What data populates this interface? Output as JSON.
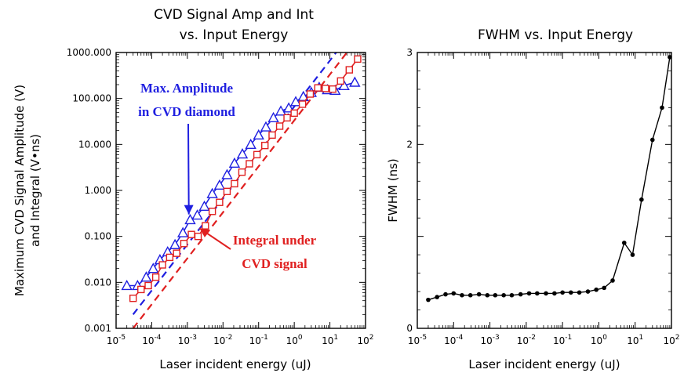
{
  "chart_data": [
    {
      "type": "line",
      "title": "CVD Signal Amp and Int",
      "subtitle": "vs. Input Energy",
      "xlabel": "Laser incident energy (uJ)",
      "ylabel": "Maximum CVD Signal Amplitude (V)",
      "ylabel2": "and Integral (V•ns)",
      "xscale": "log",
      "yscale": "log",
      "xlim": [
        1e-05,
        100
      ],
      "ylim": [
        0.001,
        1000
      ],
      "xticks": [
        1e-05,
        0.0001,
        0.001,
        0.01,
        0.1,
        1,
        10,
        100
      ],
      "xtick_labels": [
        {
          "base": "10",
          "exp": "-5"
        },
        {
          "base": "10",
          "exp": "-4"
        },
        {
          "base": "10",
          "exp": "-3"
        },
        {
          "base": "10",
          "exp": "-2"
        },
        {
          "base": "10",
          "exp": "-1"
        },
        {
          "base": "10",
          "exp": "0"
        },
        {
          "base": "10",
          "exp": "1"
        },
        {
          "base": "10",
          "exp": "2"
        }
      ],
      "yticks": [
        0.001,
        0.01,
        0.1,
        1,
        10,
        100,
        1000
      ],
      "ytick_labels": [
        "0.001",
        "0.010",
        "0.100",
        "1.000",
        "10.000",
        "100.000",
        "1000.000"
      ],
      "series": [
        {
          "color": "#1f1fe0",
          "marker": "triangle",
          "x": [
            2e-05,
            4e-05,
            7e-05,
            0.00011,
            0.00017,
            0.00028,
            0.00045,
            0.00075,
            0.0012,
            0.0019,
            0.003,
            0.005,
            0.008,
            0.013,
            0.021,
            0.035,
            0.06,
            0.1,
            0.16,
            0.26,
            0.42,
            0.7,
            1.1,
            1.8,
            3,
            5,
            8.5,
            14,
            25,
            50
          ],
          "y": [
            0.0085,
            0.0085,
            0.013,
            0.02,
            0.031,
            0.046,
            0.066,
            0.12,
            0.23,
            0.29,
            0.45,
            0.85,
            1.3,
            2.2,
            3.9,
            6.2,
            10,
            16,
            24,
            38,
            53,
            62,
            85,
            110,
            135,
            175,
            155,
            150,
            190,
            225
          ]
        },
        {
          "color": "#e02020",
          "marker": "square",
          "x": [
            3e-05,
            5e-05,
            8e-05,
            0.00013,
            0.0002,
            0.00032,
            0.0005,
            0.0008,
            0.0013,
            0.002,
            0.0032,
            0.005,
            0.008,
            0.013,
            0.021,
            0.034,
            0.055,
            0.09,
            0.15,
            0.24,
            0.39,
            0.63,
            1,
            1.7,
            2.8,
            4.6,
            7.5,
            12,
            20,
            35,
            60
          ],
          "y": [
            0.0045,
            0.007,
            0.0085,
            0.013,
            0.024,
            0.035,
            0.043,
            0.07,
            0.11,
            0.1,
            0.17,
            0.35,
            0.55,
            0.95,
            1.4,
            2.5,
            3.8,
            6,
            9.5,
            16,
            25,
            38,
            48,
            75,
            125,
            170,
            165,
            160,
            240,
            420,
            720
          ]
        }
      ],
      "fit_lines": [
        {
          "color": "#1f1fe0",
          "dash": true,
          "x": [
            3e-05,
            15
          ],
          "y": [
            0.002,
            1000
          ]
        },
        {
          "color": "#e02020",
          "dash": true,
          "x": [
            3e-05,
            30
          ],
          "y": [
            0.001,
            1000
          ]
        }
      ],
      "annotations": [
        {
          "text": "Max. Amplitude",
          "color": "#1f1fe0",
          "arrow_to_x": 0.0011,
          "arrow_to_y": 0.3
        },
        {
          "text": "in CVD diamond",
          "color": "#1f1fe0"
        },
        {
          "text": "Integral under",
          "color": "#e02020",
          "arrow_to_x": 0.0022,
          "arrow_to_y": 0.15
        },
        {
          "text": "CVD signal",
          "color": "#e02020"
        }
      ]
    },
    {
      "type": "line",
      "title": "FWHM vs. Input Energy",
      "xlabel": "Laser incident energy (uJ)",
      "ylabel": "FWHM  (ns)",
      "xscale": "log",
      "yscale": "linear",
      "xlim": [
        1e-05,
        100
      ],
      "ylim": [
        0,
        3
      ],
      "xticks": [
        1e-05,
        0.0001,
        0.001,
        0.01,
        0.1,
        1,
        10,
        100
      ],
      "xtick_labels": [
        {
          "base": "10",
          "exp": "-5"
        },
        {
          "base": "10",
          "exp": "-4"
        },
        {
          "base": "10",
          "exp": "-3"
        },
        {
          "base": "10",
          "exp": "-2"
        },
        {
          "base": "10",
          "exp": "-1"
        },
        {
          "base": "10",
          "exp": "0"
        },
        {
          "base": "10",
          "exp": "1"
        },
        {
          "base": "10",
          "exp": "2"
        }
      ],
      "yticks": [
        0,
        1,
        2,
        3
      ],
      "ytick_labels": [
        "0",
        "",
        "2",
        "3"
      ],
      "series": [
        {
          "color": "#000000",
          "marker": "dot",
          "x": [
            2e-05,
            3.5e-05,
            6e-05,
            0.0001,
            0.00017,
            0.00029,
            0.0005,
            0.00085,
            0.0014,
            0.0024,
            0.004,
            0.007,
            0.012,
            0.02,
            0.035,
            0.06,
            0.1,
            0.17,
            0.29,
            0.5,
            0.85,
            1.4,
            2.4,
            5,
            8.5,
            15,
            30,
            55,
            90
          ],
          "y": [
            0.31,
            0.34,
            0.37,
            0.38,
            0.36,
            0.36,
            0.37,
            0.36,
            0.36,
            0.36,
            0.36,
            0.37,
            0.38,
            0.38,
            0.38,
            0.38,
            0.39,
            0.39,
            0.39,
            0.4,
            0.42,
            0.44,
            0.52,
            0.93,
            0.8,
            1.4,
            2.05,
            2.4,
            2.95
          ]
        }
      ]
    }
  ]
}
